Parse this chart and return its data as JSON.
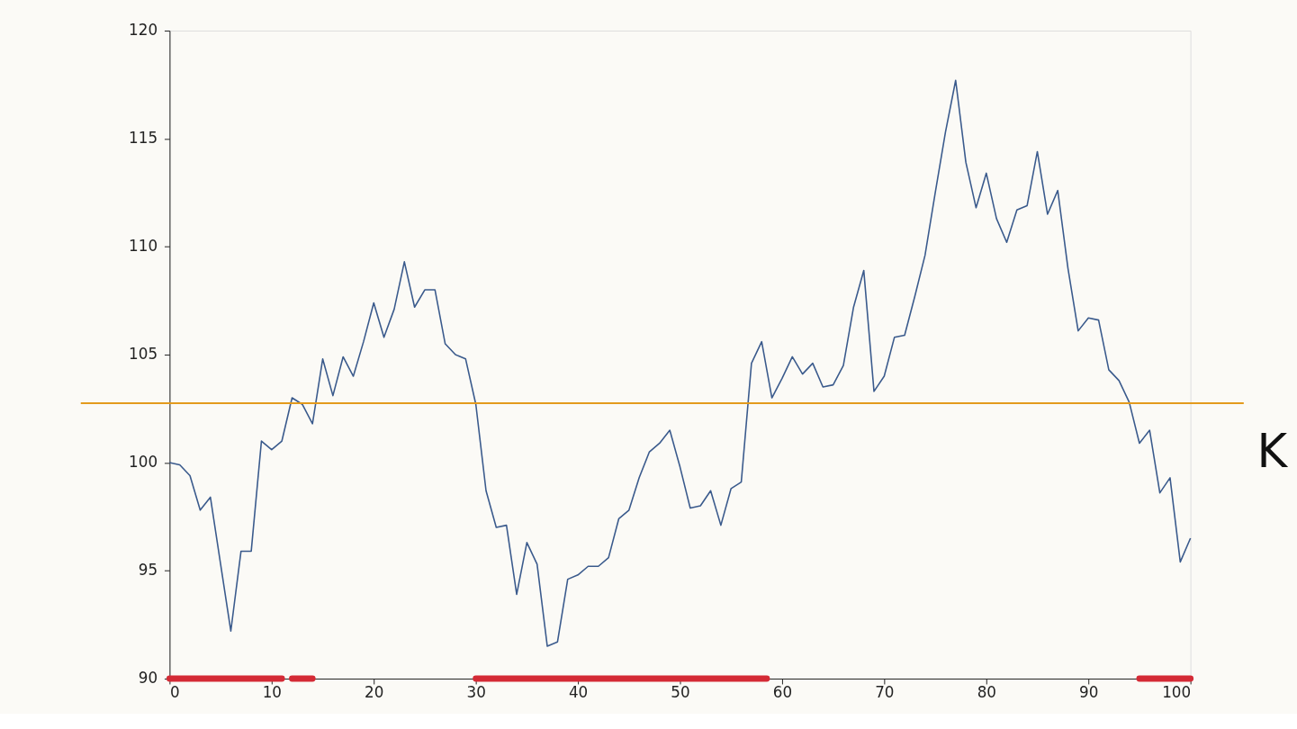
{
  "chart_data": {
    "type": "line",
    "x": [
      0,
      1,
      2,
      3,
      4,
      5,
      6,
      7,
      8,
      9,
      10,
      11,
      12,
      13,
      14,
      15,
      16,
      17,
      18,
      19,
      20,
      21,
      22,
      23,
      24,
      25,
      26,
      27,
      28,
      29,
      30,
      31,
      32,
      33,
      34,
      35,
      36,
      37,
      38,
      39,
      40,
      41,
      42,
      43,
      44,
      45,
      46,
      47,
      48,
      49,
      50,
      51,
      52,
      53,
      54,
      55,
      56,
      57,
      58,
      59,
      60,
      61,
      62,
      63,
      64,
      65,
      66,
      67,
      68,
      69,
      70,
      71,
      72,
      73,
      74,
      75,
      76,
      77,
      78,
      79,
      80,
      81,
      82,
      83,
      84,
      85,
      86,
      87,
      88,
      89,
      90,
      91,
      92,
      93,
      94,
      95,
      96,
      97,
      98,
      99,
      100
    ],
    "series": [
      {
        "color": "#d42a35",
        "x": [
          0,
          11,
          null,
          12,
          14,
          null,
          30,
          58.5,
          null,
          95,
          100
        ],
        "values": [
          90,
          90,
          null,
          90,
          90,
          null,
          90,
          90,
          null,
          90,
          90
        ]
      },
      {
        "color": "#3a5a8c",
        "values": [
          100.0,
          99.9,
          99.4,
          97.8,
          98.4,
          95.3,
          92.2,
          95.9,
          95.9,
          101.0,
          100.6,
          101.0,
          103.0,
          102.7,
          101.8,
          104.8,
          103.1,
          104.9,
          104.0,
          105.6,
          107.4,
          105.8,
          107.1,
          109.3,
          107.2,
          108.0,
          108.0,
          105.5,
          105.0,
          104.8,
          102.7,
          98.7,
          97.0,
          97.1,
          93.9,
          96.3,
          95.3,
          91.5,
          91.7,
          94.6,
          94.8,
          95.2,
          95.2,
          95.6,
          97.4,
          97.8,
          99.3,
          100.5,
          100.9,
          101.5,
          99.8,
          97.9,
          98.0,
          98.7,
          97.1,
          98.8,
          99.1,
          104.6,
          105.6,
          103.0,
          103.9,
          104.9,
          104.1,
          104.6,
          103.5,
          103.6,
          104.5,
          107.2,
          108.9,
          103.3,
          104.0,
          105.8,
          105.9,
          107.7,
          109.6,
          112.5,
          115.3,
          117.7,
          113.9,
          111.8,
          113.4,
          111.3,
          110.2,
          111.7,
          111.9,
          114.4,
          111.5,
          112.6,
          109.0,
          106.1,
          106.7,
          106.6,
          104.3,
          103.8,
          102.8,
          100.9,
          101.5,
          98.6,
          99.3,
          95.4,
          96.5
        ]
      }
    ],
    "xlim": [
      0,
      100
    ],
    "xticks": [
      0,
      10,
      20,
      30,
      40,
      50,
      60,
      70,
      80,
      90,
      100
    ],
    "ylim": [
      90,
      120
    ],
    "yticks": [
      90,
      95,
      100,
      105,
      110,
      115,
      120
    ],
    "grid": false,
    "marker": "none",
    "line_style": "solid",
    "ref_lines": [
      {
        "axis": "y",
        "value": 102.75,
        "label": "K",
        "color": "#e39a1c"
      }
    ]
  }
}
